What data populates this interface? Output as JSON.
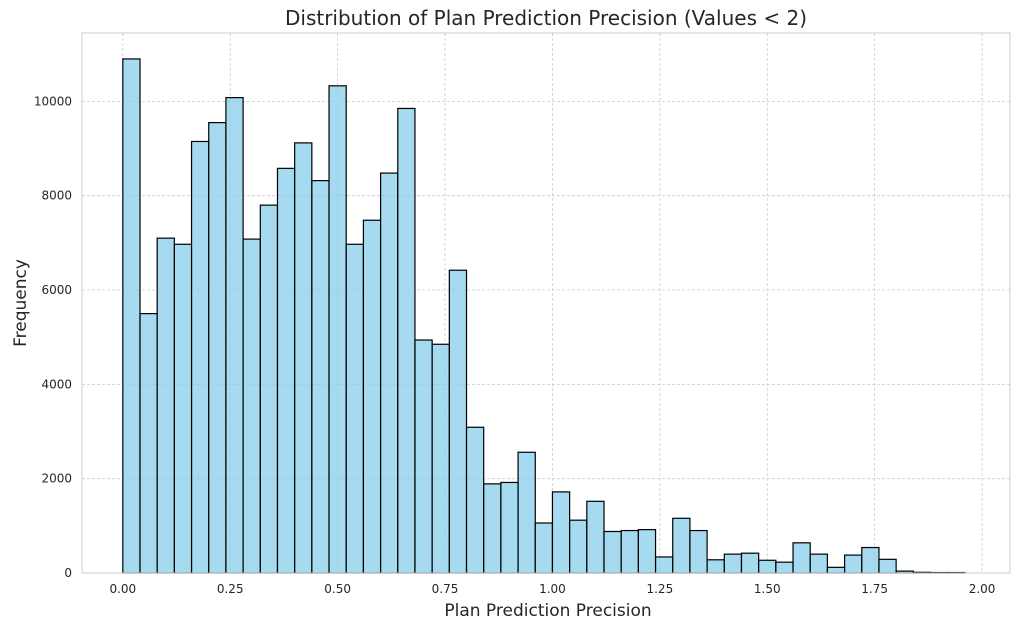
{
  "chart_data": {
    "type": "bar",
    "title": "Distribution of Plan Prediction Precision (Values < 2)",
    "xlabel": "Plan Prediction Precision",
    "ylabel": "Frequency",
    "xlim": [
      -0.095,
      2.065
    ],
    "ylim": [
      0,
      11450
    ],
    "grid": true,
    "xticks": [
      0.0,
      0.25,
      0.5,
      0.75,
      1.0,
      1.25,
      1.5,
      1.75,
      2.0
    ],
    "xtick_labels": [
      "0.00",
      "0.25",
      "0.50",
      "0.75",
      "1.00",
      "1.25",
      "1.50",
      "1.75",
      "2.00"
    ],
    "yticks": [
      0,
      2000,
      4000,
      6000,
      8000,
      10000
    ],
    "ytick_labels": [
      "0",
      "2000",
      "4000",
      "6000",
      "8000",
      "10000"
    ],
    "bin_edges": [
      0.0,
      0.04,
      0.08,
      0.12,
      0.16,
      0.2,
      0.24,
      0.28,
      0.32,
      0.36,
      0.4,
      0.44,
      0.48,
      0.52,
      0.56,
      0.6,
      0.64,
      0.68,
      0.72,
      0.76,
      0.8,
      0.84,
      0.88,
      0.92,
      0.96,
      1.0,
      1.04,
      1.08,
      1.12,
      1.16,
      1.2,
      1.24,
      1.28,
      1.32,
      1.36,
      1.4,
      1.44,
      1.48,
      1.52,
      1.56,
      1.6,
      1.64,
      1.68,
      1.72,
      1.76,
      1.8,
      1.84,
      1.88,
      1.92,
      1.96
    ],
    "values": [
      10900,
      5500,
      7100,
      6970,
      9150,
      9550,
      10080,
      7080,
      7800,
      8580,
      9120,
      8320,
      10330,
      6970,
      7480,
      8480,
      9850,
      4940,
      4850,
      6420,
      3090,
      1890,
      1920,
      2560,
      1060,
      1720,
      1120,
      1520,
      880,
      900,
      920,
      340,
      1160,
      900,
      280,
      400,
      420,
      270,
      230,
      640,
      400,
      120,
      380,
      540,
      290,
      40,
      15,
      10,
      10
    ]
  }
}
